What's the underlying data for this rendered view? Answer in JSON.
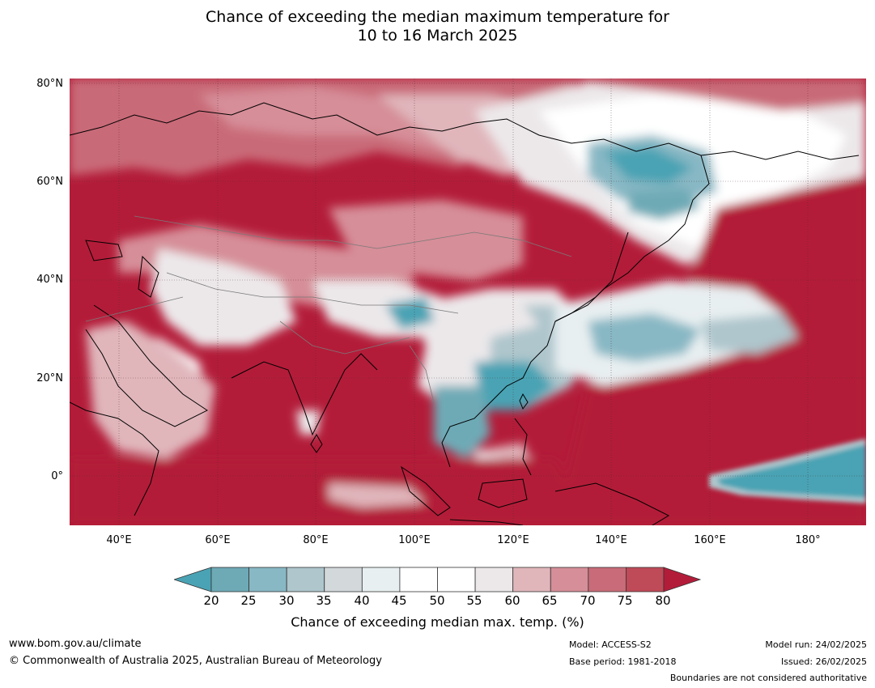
{
  "title_line1": "Chance of exceeding the median maximum temperature for",
  "title_line2": "10 to 16 March 2025",
  "latitude_labels": [
    "80°N",
    "60°N",
    "40°N",
    "20°N",
    "0°"
  ],
  "longitude_labels": [
    "40°E",
    "60°E",
    "80°E",
    "100°E",
    "120°E",
    "140°E",
    "160°E",
    "180°"
  ],
  "map_extent": {
    "lon": [
      30,
      191
    ],
    "lat": [
      -10,
      80
    ]
  },
  "colorbar": {
    "ticks": [
      "20",
      "25",
      "30",
      "35",
      "40",
      "45",
      "50",
      "55",
      "60",
      "65",
      "70",
      "75",
      "80"
    ],
    "colors": [
      "#4aa3b4",
      "#6eaab6",
      "#88b8c4",
      "#aec6cc",
      "#d3d8db",
      "#e8eff1",
      "#ffffff",
      "#ffffff",
      "#ece8ea",
      "#e0b6bb",
      "#d68e98",
      "#c96b78",
      "#bf4a58",
      "#b31c39"
    ],
    "label": "Chance of exceeding median max. temp. (%)"
  },
  "footer": {
    "website": "www.bom.gov.au/climate",
    "copyright": "© Commonwealth of Australia 2025, Australian Bureau of Meteorology",
    "model": "Model: ACCESS-S2",
    "base_period": "Base period: 1981-2018",
    "model_run": "Model run: 24/02/2025",
    "issued": "Issued: 26/02/2025",
    "disclaimer": "Boundaries are not considered authoritative"
  }
}
